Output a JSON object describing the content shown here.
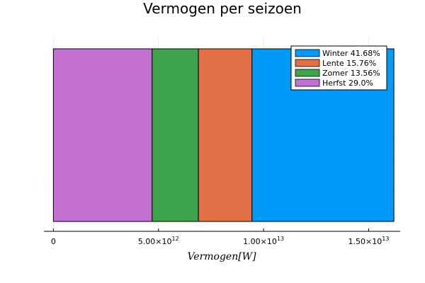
{
  "chart_data": {
    "type": "bar",
    "orientation": "horizontal",
    "stacked": true,
    "title": "Vermogen per seizoen",
    "xlabel": "Vermogen[W]",
    "ylabel": "",
    "xlim": [
      -450000000000.0,
      16500000000000.0
    ],
    "xticks": [
      {
        "value": 0,
        "mantissa": "0",
        "exponent": ""
      },
      {
        "value": 5000000000000.0,
        "mantissa": "5.00×10",
        "exponent": "12"
      },
      {
        "value": 10000000000000.0,
        "mantissa": "1.00×10",
        "exponent": "13"
      },
      {
        "value": 15000000000000.0,
        "mantissa": "1.50×10",
        "exponent": "13"
      }
    ],
    "grid": true,
    "legend_position": "top-right",
    "series": [
      {
        "name": "Herfst 29.0%",
        "value": 4700000000000.0,
        "color": "#c271d2"
      },
      {
        "name": "Zomer 13.56%",
        "value": 2200000000000.0,
        "color": "#3da44d"
      },
      {
        "name": "Lente 15.76%",
        "value": 2550000000000.0,
        "color": "#e26f46"
      },
      {
        "name": "Winter 41.68%",
        "value": 6750000000000.0,
        "color": "#009af9"
      }
    ],
    "legend_order": [
      "Winter 41.68%",
      "Lente 15.76%",
      "Zomer 13.56%",
      "Herfst 29.0%"
    ]
  }
}
